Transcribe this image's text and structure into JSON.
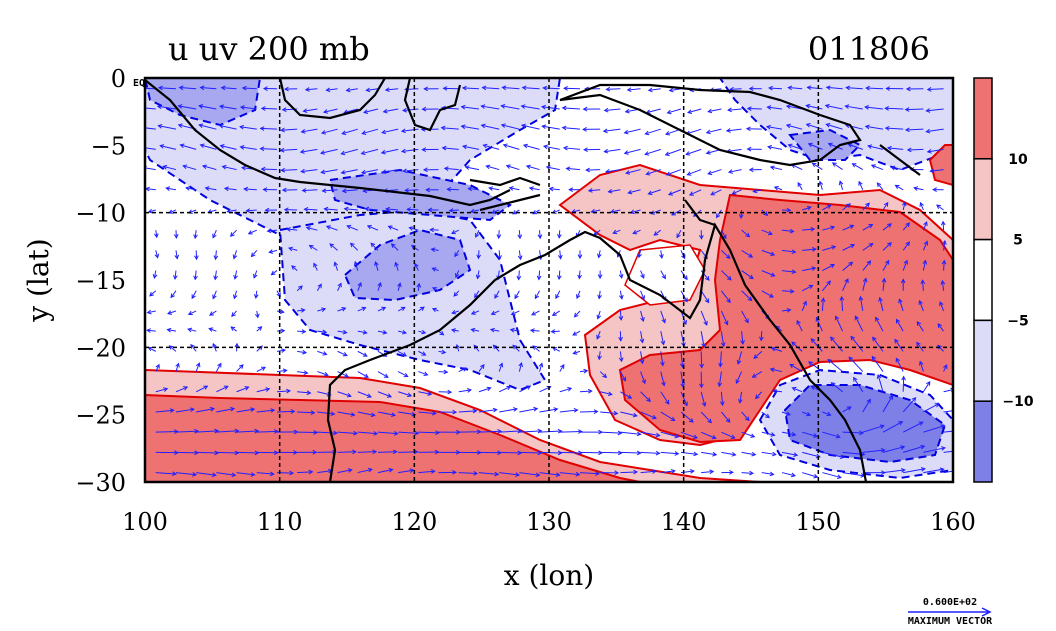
{
  "chart_data": {
    "type": "contour-vector-map",
    "title_left": "u uv 200 mb",
    "title_right": "011806",
    "xlabel": "x (lon)",
    "ylabel": "y (lat)",
    "xlim": [
      100,
      160
    ],
    "ylim": [
      -30,
      0
    ],
    "xticks": [
      "100",
      "110",
      "120",
      "130",
      "140",
      "150",
      "160"
    ],
    "yticks": [
      "0",
      "−5",
      "−10",
      "−15",
      "−20",
      "−25",
      "−30"
    ],
    "eq_label": "EQ",
    "grid": true,
    "colorbar": {
      "ticks": [
        "10",
        "5",
        "−5",
        "−10"
      ],
      "levels": [
        -10,
        -5,
        5,
        10
      ],
      "colors": [
        "#7f7fe8",
        "#dcdcf8",
        "#ffffff",
        "#f5c4c4",
        "#ee7272"
      ]
    },
    "vector_legend": {
      "value": "0.600E+02",
      "label": "MAXIMUM VECTOR"
    },
    "colors": {
      "positive_contour": "#e00000",
      "negative_contour": "#0000e0",
      "coast": "#000000",
      "vector": "#2020ff"
    }
  }
}
